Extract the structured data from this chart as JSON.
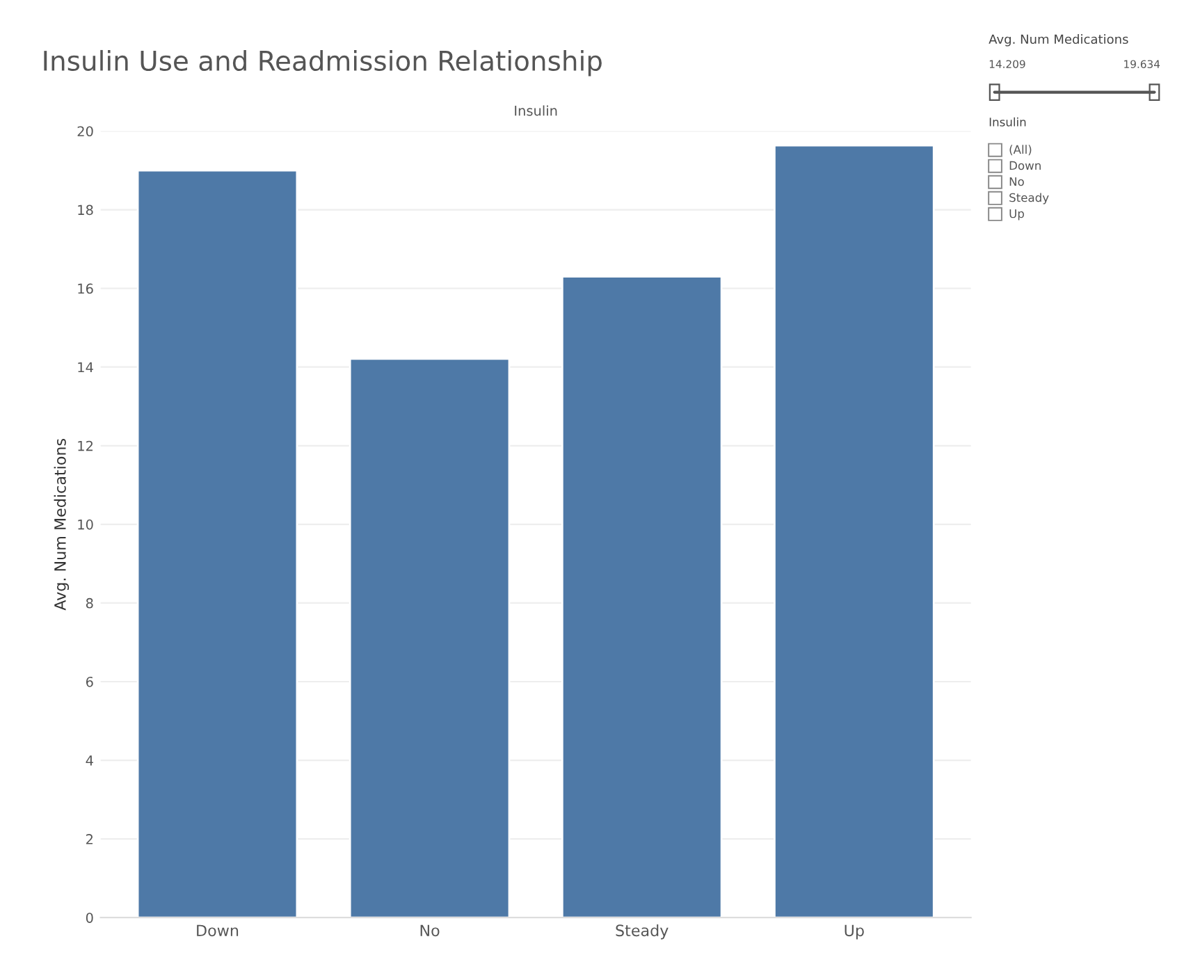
{
  "chart_data": {
    "type": "bar",
    "title": "Insulin Use and Readmission Relationship",
    "xlabel": "Insulin",
    "ylabel": "Avg. Num Medications",
    "categories": [
      "Down",
      "No",
      "Steady",
      "Up"
    ],
    "values": [
      19.0,
      14.209,
      16.3,
      19.634
    ],
    "color": "#4e79a7",
    "ylim": [
      0,
      20
    ],
    "yticks": [
      0,
      2,
      4,
      6,
      8,
      10,
      12,
      14,
      16,
      18,
      20
    ],
    "grid": "y",
    "annotations": [
      "Avg. Num Medications",
      "14.209",
      "19.634",
      "Insulin",
      "(All)",
      "Down",
      "No",
      "Steady",
      "Up"
    ]
  }
}
